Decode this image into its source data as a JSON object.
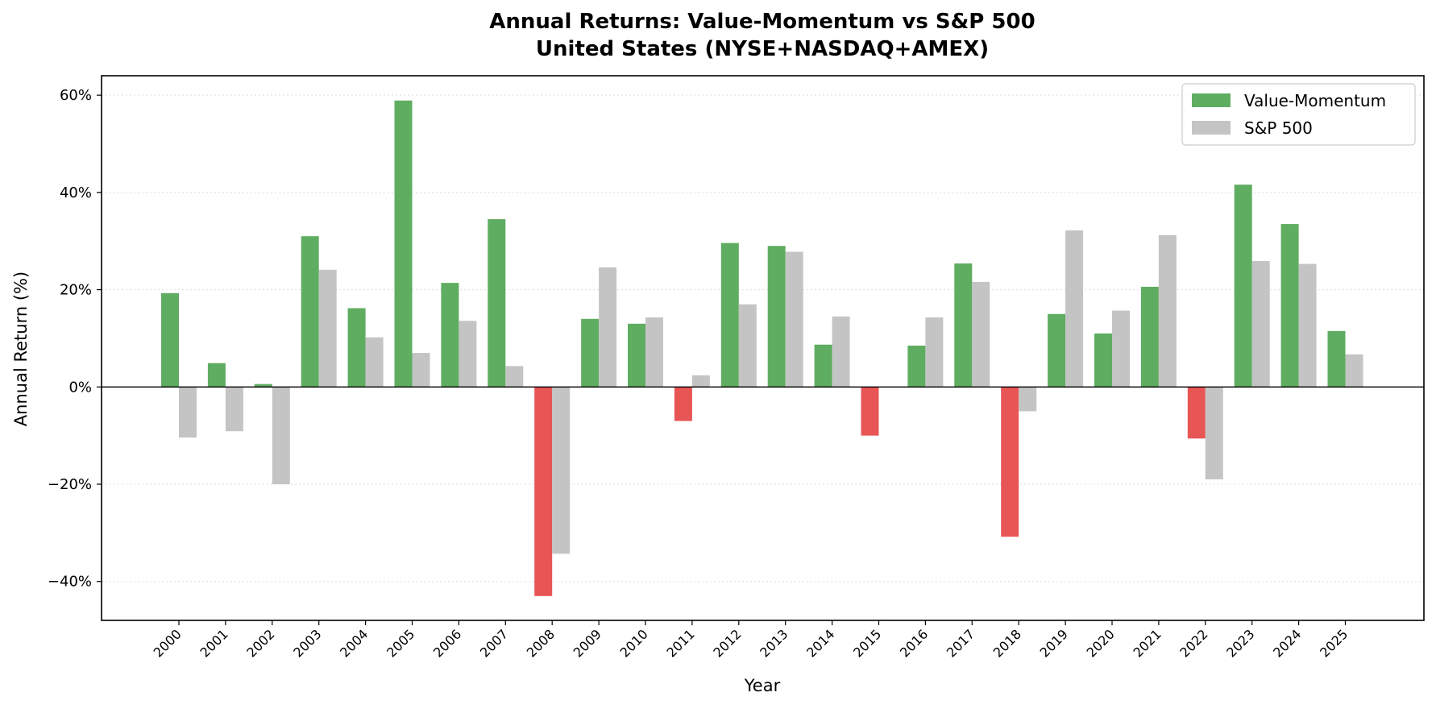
{
  "chart_data": {
    "type": "bar",
    "title": "Annual Returns: Value-Momentum vs S&P 500",
    "subtitle": "United States (NYSE+NASDAQ+AMEX)",
    "xlabel": "Year",
    "ylabel": "Annual Return (%)",
    "ylim": [
      -48,
      64
    ],
    "yticks": [
      -40,
      -20,
      0,
      20,
      40,
      60
    ],
    "ytick_labels": [
      "−40%",
      "−20%",
      "0%",
      "20%",
      "40%",
      "60%"
    ],
    "grid": "horizontal dotted",
    "legend_position": "top-right",
    "categories": [
      "2000",
      "2001",
      "2002",
      "2003",
      "2004",
      "2005",
      "2006",
      "2007",
      "2008",
      "2009",
      "2010",
      "2011",
      "2012",
      "2013",
      "2014",
      "2015",
      "2016",
      "2017",
      "2018",
      "2019",
      "2020",
      "2021",
      "2022",
      "2023",
      "2024",
      "2025"
    ],
    "series": [
      {
        "name": "Value-Momentum",
        "color": "#5fad61",
        "negative_color": "#e85555",
        "values": [
          19.3,
          4.9,
          0.6,
          31.0,
          16.2,
          58.9,
          21.4,
          34.5,
          -43.0,
          14.0,
          13.0,
          -7.0,
          29.6,
          29.0,
          8.7,
          -10.0,
          8.5,
          25.4,
          -30.8,
          15.0,
          11.0,
          20.6,
          -10.6,
          41.6,
          33.5,
          11.5
        ]
      },
      {
        "name": "S&P 500",
        "color": "#c4c4c4",
        "values": [
          -10.4,
          -9.1,
          -20.0,
          24.1,
          10.2,
          7.0,
          13.6,
          4.3,
          -34.3,
          24.6,
          14.3,
          2.4,
          17.0,
          27.8,
          14.5,
          0.0,
          14.3,
          21.6,
          -5.0,
          32.2,
          15.7,
          31.2,
          -19.0,
          25.9,
          25.3,
          6.7
        ]
      }
    ]
  }
}
